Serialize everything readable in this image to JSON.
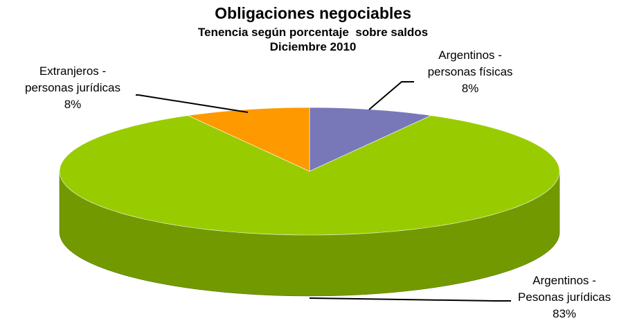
{
  "chart_data": {
    "type": "pie3d",
    "title": "Obligaciones negociables",
    "subtitle": [
      "Tenencia según porcentaje  sobre saldos",
      "Diciembre 2010"
    ],
    "categories": [
      "Argentinos - personas físicas",
      "Argentinos - Pesonas jurídicas",
      "Extranjeros - personas jurídicas"
    ],
    "values": [
      8,
      83,
      8
    ],
    "value_labels": [
      "8%",
      "83%",
      "8%"
    ],
    "colors": [
      "#7878b8",
      "#99cc00",
      "#ff9900"
    ],
    "side_colors": [
      "#55558a",
      "#729a00",
      "#c07000"
    ]
  }
}
